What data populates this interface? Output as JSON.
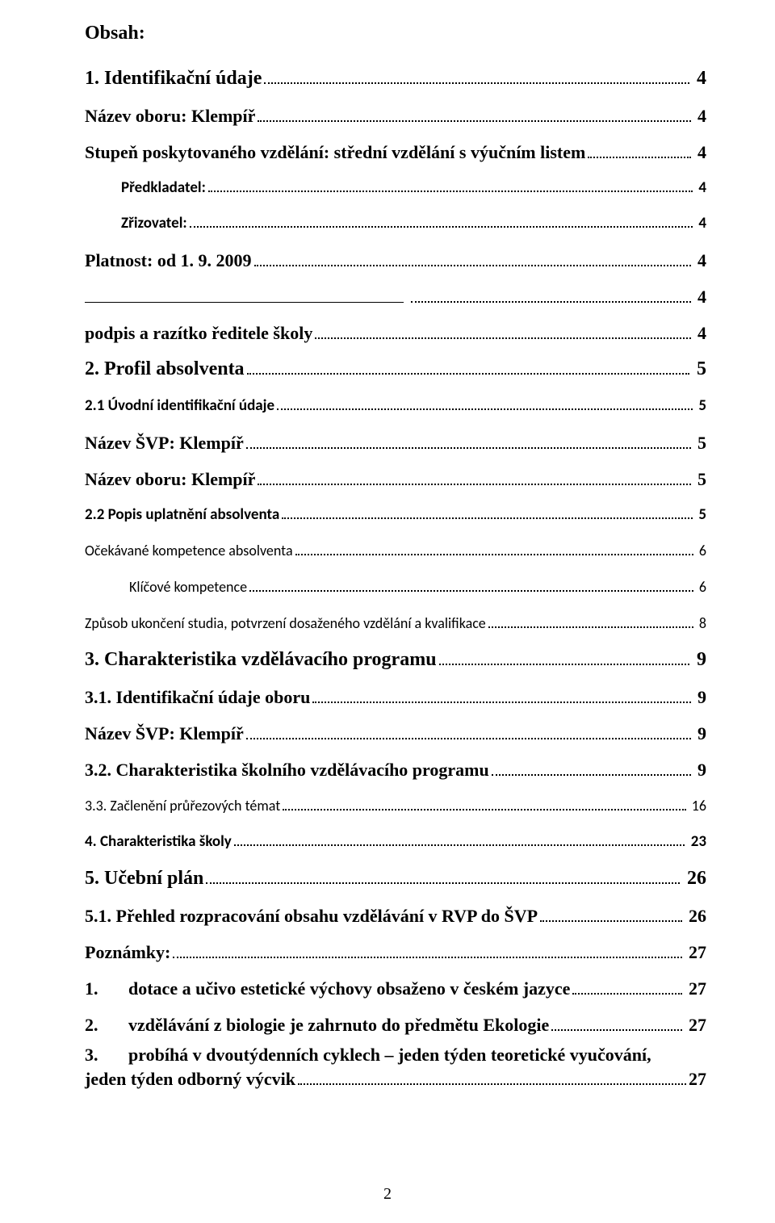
{
  "title": "Obsah:",
  "page_number": "2",
  "colors": {
    "background": "#ffffff",
    "text": "#000000",
    "leader": "#000000"
  },
  "fonts": {
    "serif": "Times New Roman",
    "sans": "Calibri",
    "h1_size": 24,
    "h2_size": 22,
    "h3_size": 19,
    "h4_size": 18
  },
  "entries": [
    {
      "level": "h1",
      "label": "1. Identifikační údaje",
      "page": "4"
    },
    {
      "level": "h2",
      "label": "Název oboru: Klempíř",
      "page": "4"
    },
    {
      "level": "h2",
      "label": "Stupeň poskytovaného vzdělání: střední vzdělání s výučním listem",
      "page": "4"
    },
    {
      "level": "h3-indent",
      "label": "Předkladatel:",
      "page": "4"
    },
    {
      "level": "h3-indent",
      "label": "Zřizovatel:",
      "page": "4"
    },
    {
      "level": "h2",
      "label": "Platnost: od 1. 9. 2009",
      "page": "4"
    },
    {
      "level": "h2",
      "label": "",
      "page": "4",
      "signature": true
    },
    {
      "level": "h2",
      "label": "podpis a razítko ředitele školy",
      "page": "4"
    },
    {
      "level": "h1",
      "label": "2. Profil absolventa",
      "page": "5"
    },
    {
      "level": "h3",
      "label": "2.1 Úvodní identifikační údaje",
      "page": "5"
    },
    {
      "level": "h2",
      "label": "Název ŠVP: Klempíř",
      "page": "5"
    },
    {
      "level": "h2",
      "label": "Název oboru: Klempíř",
      "page": "5"
    },
    {
      "level": "h3",
      "label": "2.2 Popis uplatnění absolventa",
      "page": "5"
    },
    {
      "level": "h4-flush",
      "label": "Očekávané kompetence absolventa",
      "page": "6"
    },
    {
      "level": "h4",
      "label": "Klíčové kompetence",
      "page": "6"
    },
    {
      "level": "h4-flush",
      "label": "Způsob ukončení studia, potvrzení dosaženého vzdělání a kvalifikace",
      "page": "8"
    },
    {
      "level": "h1",
      "label": "3. Charakteristika vzdělávacího programu",
      "page": "9"
    },
    {
      "level": "h2",
      "label": "3.1. Identifikační údaje oboru",
      "page": "9"
    },
    {
      "level": "h2",
      "label": "Název ŠVP: Klempíř",
      "page": "9"
    },
    {
      "level": "h2",
      "label": "3.2. Charakteristika školního vzdělávacího programu",
      "page": "9"
    },
    {
      "level": "h4-flush",
      "label": "3.3. Začlenění průřezových témat",
      "page": "16"
    },
    {
      "level": "h3",
      "label": "4. Charakteristika školy",
      "page": "23"
    },
    {
      "level": "h1",
      "label": "5. Učební plán",
      "page": "26"
    },
    {
      "level": "h2",
      "label": "5.1. Přehled rozpracování obsahu vzdělávání v RVP do ŠVP",
      "page": "26"
    },
    {
      "level": "h2",
      "label": "Poznámky:",
      "page": "27"
    },
    {
      "level": "h2",
      "label": "dotace a učivo estetické výchovy obsaženo v českém jazyce",
      "page": "27",
      "num": "1."
    },
    {
      "level": "h2",
      "label": "vzdělávání z biologie je zahrnuto do předmětu Ekologie",
      "page": "27",
      "num": "2."
    },
    {
      "level": "h2",
      "label": "probíhá v dvoutýdenních cyklech – jeden týden teoretické vyučování, jeden týden odborný výcvik",
      "page": "27",
      "num": "3.",
      "wrap": true
    }
  ]
}
